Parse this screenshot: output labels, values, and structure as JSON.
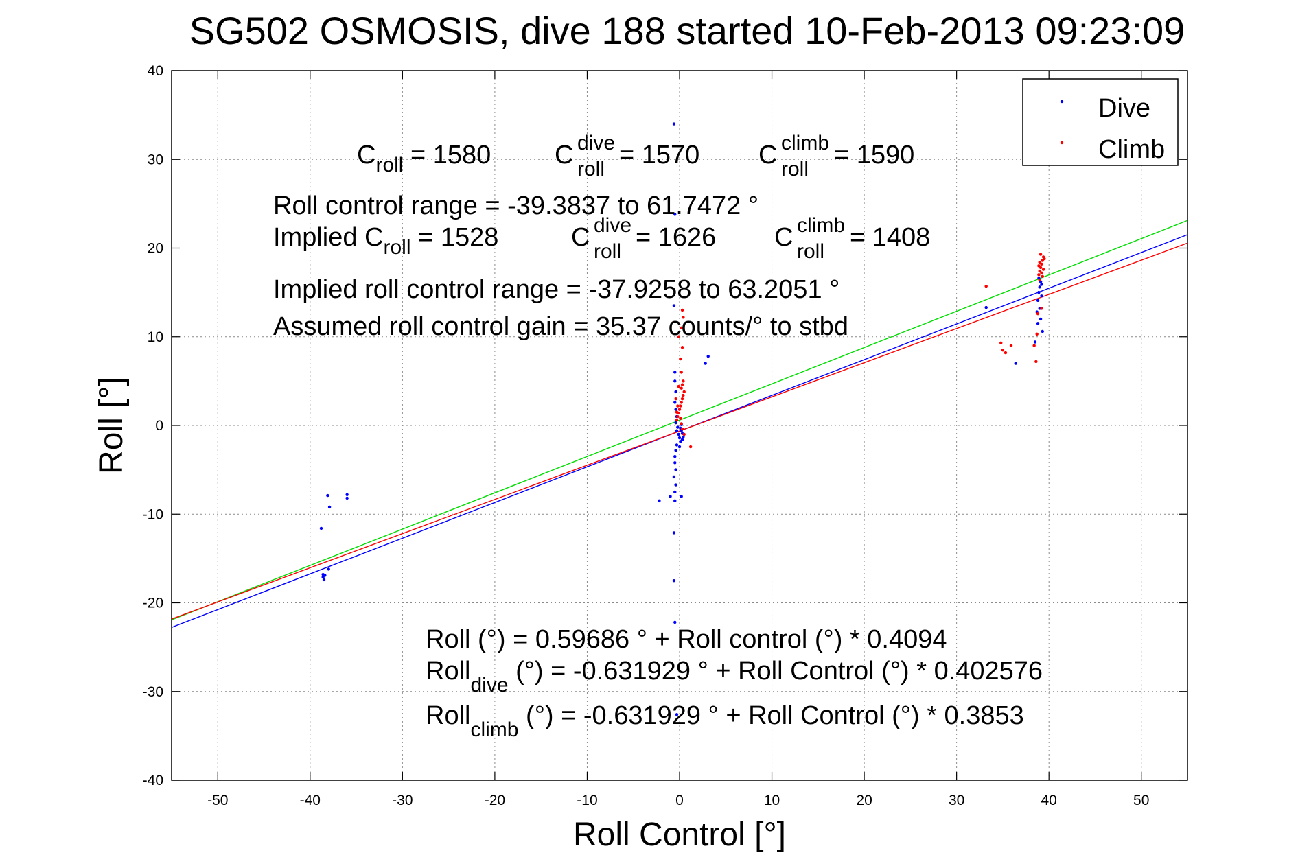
{
  "chart_data": {
    "type": "scatter",
    "title": "SG502 OSMOSIS, dive 188 started 10-Feb-2013 09:23:09",
    "xlabel": "Roll Control [°]",
    "ylabel": "Roll [°]",
    "xlim": [
      -55,
      55
    ],
    "ylim": [
      -40,
      40
    ],
    "xticks": [
      -50,
      -40,
      -30,
      -20,
      -10,
      0,
      10,
      20,
      30,
      40,
      50
    ],
    "yticks": [
      -40,
      -30,
      -20,
      -10,
      0,
      10,
      20,
      30,
      40
    ],
    "grid": true,
    "legend_position": "top-right",
    "legend": [
      {
        "label": "Dive",
        "color": "#0000ff"
      },
      {
        "label": "Climb",
        "color": "#ff0000"
      }
    ],
    "series": [
      {
        "name": "Dive",
        "color": "#0000ff",
        "points": [
          [
            -38.8,
            -11.6
          ],
          [
            -38.6,
            -16.8
          ],
          [
            -38.6,
            -17.1
          ],
          [
            -38.5,
            -17.4
          ],
          [
            -38.4,
            -16.9
          ],
          [
            -38.0,
            -16.2
          ],
          [
            -38.1,
            -7.9
          ],
          [
            -37.9,
            -9.2
          ],
          [
            -36.0,
            -7.8
          ],
          [
            -36.0,
            -8.2
          ],
          [
            -0.6,
            34.0
          ],
          [
            -0.5,
            23.8
          ],
          [
            -0.6,
            13.5
          ],
          [
            -0.5,
            6.0
          ],
          [
            -0.5,
            5.0
          ],
          [
            -0.4,
            3.8
          ],
          [
            -0.5,
            2.6
          ],
          [
            -0.4,
            1.8
          ],
          [
            -0.3,
            1.0
          ],
          [
            -0.4,
            0.3
          ],
          [
            -0.2,
            -0.2
          ],
          [
            -0.3,
            -0.6
          ],
          [
            -0.1,
            -1.0
          ],
          [
            0.0,
            -1.4
          ],
          [
            0.1,
            -1.8
          ],
          [
            -0.3,
            -2.2
          ],
          [
            -0.4,
            -2.8
          ],
          [
            -0.5,
            -3.5
          ],
          [
            -0.5,
            -4.2
          ],
          [
            -0.4,
            -5.0
          ],
          [
            -0.6,
            -5.8
          ],
          [
            -0.4,
            -6.7
          ],
          [
            -0.5,
            -7.5
          ],
          [
            -0.5,
            -8.5
          ],
          [
            -0.6,
            -12.1
          ],
          [
            -0.6,
            -17.5
          ],
          [
            -0.5,
            -22.2
          ],
          [
            -0.3,
            -32.6
          ],
          [
            0.2,
            -0.6
          ],
          [
            0.3,
            -0.9
          ],
          [
            0.4,
            -1.3
          ],
          [
            0.1,
            -0.3
          ],
          [
            0.2,
            0.1
          ],
          [
            0.3,
            -1.6
          ],
          [
            0.0,
            -2.4
          ],
          [
            0.2,
            -8.0
          ],
          [
            -2.2,
            -8.5
          ],
          [
            -1.0,
            -8.0
          ],
          [
            3.1,
            7.8
          ],
          [
            2.8,
            7.0
          ],
          [
            33.2,
            13.3
          ],
          [
            36.4,
            7.0
          ],
          [
            38.5,
            9.4
          ],
          [
            38.7,
            12.8
          ],
          [
            38.8,
            14.1
          ],
          [
            38.9,
            15.0
          ],
          [
            39.0,
            15.6
          ],
          [
            39.1,
            16.2
          ],
          [
            39.2,
            14.6
          ],
          [
            39.0,
            13.2
          ],
          [
            39.1,
            12.0
          ],
          [
            38.8,
            11.5
          ],
          [
            39.3,
            10.6
          ],
          [
            38.9,
            16.6
          ],
          [
            39.2,
            15.9
          ]
        ]
      },
      {
        "name": "Climb",
        "color": "#ff0000",
        "points": [
          [
            -0.3,
            0.6
          ],
          [
            -0.2,
            1.0
          ],
          [
            -0.1,
            1.4
          ],
          [
            0.0,
            1.8
          ],
          [
            0.1,
            2.2
          ],
          [
            0.2,
            2.6
          ],
          [
            0.3,
            3.0
          ],
          [
            0.4,
            3.4
          ],
          [
            0.5,
            3.8
          ],
          [
            0.2,
            4.2
          ],
          [
            0.3,
            4.6
          ],
          [
            0.4,
            5.0
          ],
          [
            -0.2,
            2.2
          ],
          [
            -0.3,
            1.5
          ],
          [
            0.1,
            0.8
          ],
          [
            0.2,
            0.2
          ],
          [
            0.3,
            -0.4
          ],
          [
            0.2,
            6.0
          ],
          [
            0.1,
            7.5
          ],
          [
            0.3,
            8.8
          ],
          [
            -0.1,
            10.0
          ],
          [
            0.2,
            11.0
          ],
          [
            0.4,
            12.2
          ],
          [
            0.3,
            13.0
          ],
          [
            1.2,
            -2.4
          ],
          [
            0.5,
            -1.0
          ],
          [
            -0.4,
            3.0
          ],
          [
            -0.1,
            4.4
          ],
          [
            33.2,
            15.7
          ],
          [
            34.8,
            9.3
          ],
          [
            35.0,
            8.5
          ],
          [
            35.3,
            8.2
          ],
          [
            35.9,
            9.0
          ],
          [
            38.4,
            9.0
          ],
          [
            38.6,
            7.2
          ],
          [
            38.7,
            10.3
          ],
          [
            38.9,
            17.0
          ],
          [
            39.0,
            17.4
          ],
          [
            39.1,
            17.8
          ],
          [
            39.2,
            18.2
          ],
          [
            39.3,
            18.6
          ],
          [
            39.4,
            19.0
          ],
          [
            39.0,
            18.4
          ],
          [
            39.2,
            17.2
          ],
          [
            39.3,
            16.8
          ],
          [
            39.1,
            19.3
          ],
          [
            38.9,
            18.0
          ],
          [
            39.2,
            13.2
          ],
          [
            38.8,
            12.6
          ],
          [
            39.4,
            17.6
          ],
          [
            39.5,
            18.8
          ],
          [
            39.0,
            16.4
          ]
        ]
      }
    ],
    "fit_lines": [
      {
        "color": "#00dd00",
        "intercept": 0.59686,
        "slope": 0.4094
      },
      {
        "color": "#0000ff",
        "intercept": -0.631929,
        "slope": 0.402576
      },
      {
        "color": "#ff0000",
        "intercept": -0.631929,
        "slope": 0.3853
      }
    ]
  },
  "annotations": {
    "c_roll_base": "C",
    "c_roll_sub": "roll",
    "c_roll_val": " = 1580",
    "c_dive_base": "C",
    "c_dive_sup": "dive",
    "c_dive_sub": "roll",
    "c_dive_val": " = 1570",
    "c_climb_base": "C",
    "c_climb_sup": "climb",
    "c_climb_sub": "roll",
    "c_climb_val": " = 1590",
    "range_line": "Roll control range = -39.3837 to 61.7472 °",
    "implied_base": "Implied C",
    "implied_sub": "roll",
    "implied_val": " = 1528",
    "implied_dive_base": "C",
    "implied_dive_sup": "dive",
    "implied_dive_sub": "roll",
    "implied_dive_val": " = 1626",
    "implied_climb_base": "C",
    "implied_climb_sup": "climb",
    "implied_climb_sub": "roll",
    "implied_climb_val": " = 1408",
    "implied_range_line": "Implied roll control range = -37.9258 to 63.2051 °",
    "gain_line": "Assumed roll control gain = 35.37 counts/° to stbd",
    "eq1": "Roll (°) = 0.59686 ° + Roll control (°) * 0.4094",
    "eq2_base": "Roll",
    "eq2_sub": "dive",
    "eq2_rest": " (°) = -0.631929 ° + Roll Control (°) * 0.402576",
    "eq3_base": "Roll",
    "eq3_sub": "climb",
    "eq3_rest": " (°) = -0.631929 ° + Roll Control (°) * 0.3853"
  }
}
